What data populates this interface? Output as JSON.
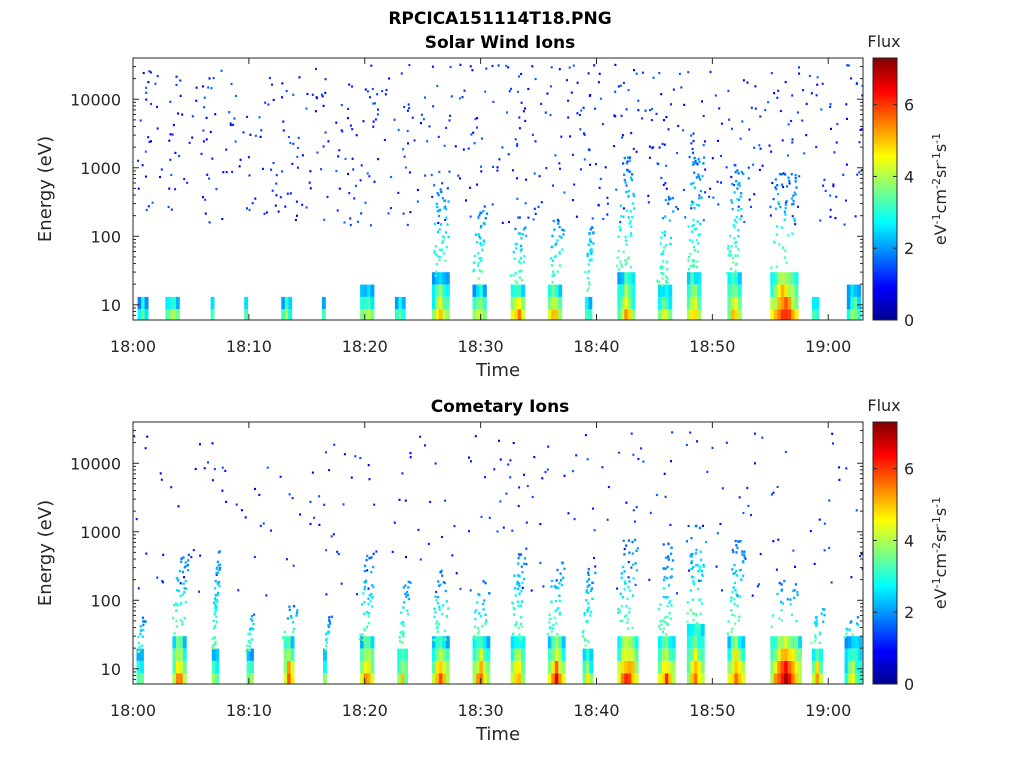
{
  "figure_title": "RPCICA151114T18.PNG",
  "chart_data": [
    {
      "type": "heatmap",
      "title": "Solar Wind Ions",
      "xlabel": "Time",
      "ylabel": "Energy (eV)",
      "y_scale": "log",
      "ylim": [
        6,
        40000
      ],
      "xlim_minutes": [
        0,
        63
      ],
      "x_ticks": [
        {
          "v": 0,
          "label": "18:00"
        },
        {
          "v": 10,
          "label": "18:10"
        },
        {
          "v": 20,
          "label": "18:20"
        },
        {
          "v": 30,
          "label": "18:30"
        },
        {
          "v": 40,
          "label": "18:40"
        },
        {
          "v": 50,
          "label": "18:50"
        },
        {
          "v": 60,
          "label": "19:00"
        }
      ],
      "y_ticks": [
        {
          "v": 10,
          "label": "10"
        },
        {
          "v": 100,
          "label": "100"
        },
        {
          "v": 1000,
          "label": "1000"
        },
        {
          "v": 10000,
          "label": "10000"
        }
      ],
      "colorbar": {
        "title": "Flux",
        "label_parts": [
          {
            "t": "eV",
            "sup": false
          },
          {
            "t": "-1",
            "sup": true
          },
          {
            "t": "cm",
            "sup": false
          },
          {
            "t": "-2",
            "sup": true
          },
          {
            "t": "sr",
            "sup": false
          },
          {
            "t": "-1",
            "sup": true
          },
          {
            "t": "s",
            "sup": false
          },
          {
            "t": "-1",
            "sup": true
          }
        ],
        "range": [
          0,
          7.3
        ],
        "ticks": [
          {
            "v": 0,
            "label": "0"
          },
          {
            "v": 2,
            "label": "2"
          },
          {
            "v": 4,
            "label": "4"
          },
          {
            "v": 6,
            "label": "6"
          }
        ],
        "colormap": "jet"
      },
      "background_cells": {
        "count": 620,
        "emin": 150,
        "emax": 33000,
        "fmin": 0.7,
        "fmax": 1.7
      },
      "bursts": [
        {
          "t": 0.4,
          "w": 1.0,
          "h": 16,
          "f": 3.6,
          "tail": 0
        },
        {
          "t": 2.8,
          "w": 1.2,
          "h": 16,
          "f": 4.3,
          "tail": 0
        },
        {
          "t": 6.7,
          "w": 0.3,
          "h": 16,
          "f": 3.4,
          "tail": 0
        },
        {
          "t": 9.6,
          "w": 0.3,
          "h": 16,
          "f": 3.3,
          "tail": 0
        },
        {
          "t": 12.8,
          "w": 0.9,
          "h": 16,
          "f": 4.0,
          "tail": 0
        },
        {
          "t": 16.3,
          "w": 0.3,
          "h": 16,
          "f": 3.2,
          "tail": 0
        },
        {
          "t": 19.6,
          "w": 1.1,
          "h": 18,
          "f": 4.6,
          "tail": 0
        },
        {
          "t": 22.6,
          "w": 0.8,
          "h": 16,
          "f": 3.7,
          "tail": 0
        },
        {
          "t": 25.8,
          "w": 1.6,
          "h": 26,
          "f": 5.0,
          "tail": 600
        },
        {
          "t": 29.3,
          "w": 1.1,
          "h": 20,
          "f": 4.7,
          "tail": 300
        },
        {
          "t": 32.6,
          "w": 1.3,
          "h": 20,
          "f": 5.7,
          "tail": 200
        },
        {
          "t": 35.8,
          "w": 1.3,
          "h": 20,
          "f": 5.6,
          "tail": 180
        },
        {
          "t": 39.0,
          "w": 0.6,
          "h": 16,
          "f": 3.8,
          "tail": 200
        },
        {
          "t": 41.8,
          "w": 1.6,
          "h": 28,
          "f": 5.3,
          "tail": 1500
        },
        {
          "t": 45.3,
          "w": 1.2,
          "h": 20,
          "f": 4.6,
          "tail": 400
        },
        {
          "t": 47.8,
          "w": 1.3,
          "h": 30,
          "f": 5.2,
          "tail": 1800
        },
        {
          "t": 51.3,
          "w": 1.2,
          "h": 28,
          "f": 5.4,
          "tail": 1200
        },
        {
          "t": 55.0,
          "w": 2.4,
          "h": 34,
          "f": 6.6,
          "tail": 900
        },
        {
          "t": 58.6,
          "w": 0.6,
          "h": 16,
          "f": 3.9,
          "tail": 0
        },
        {
          "t": 61.6,
          "w": 1.2,
          "h": 20,
          "f": 4.0,
          "tail": 0
        }
      ]
    },
    {
      "type": "heatmap",
      "title": "Cometary Ions",
      "xlabel": "Time",
      "ylabel": "Energy (eV)",
      "y_scale": "log",
      "ylim": [
        6,
        40000
      ],
      "xlim_minutes": [
        0,
        63
      ],
      "x_ticks": [
        {
          "v": 0,
          "label": "18:00"
        },
        {
          "v": 10,
          "label": "18:10"
        },
        {
          "v": 20,
          "label": "18:20"
        },
        {
          "v": 30,
          "label": "18:30"
        },
        {
          "v": 40,
          "label": "18:40"
        },
        {
          "v": 50,
          "label": "18:50"
        },
        {
          "v": 60,
          "label": "19:00"
        }
      ],
      "y_ticks": [
        {
          "v": 10,
          "label": "10"
        },
        {
          "v": 100,
          "label": "100"
        },
        {
          "v": 1000,
          "label": "1000"
        },
        {
          "v": 10000,
          "label": "10000"
        }
      ],
      "colorbar": {
        "title": "Flux",
        "label_parts": [
          {
            "t": "eV",
            "sup": false
          },
          {
            "t": "-1",
            "sup": true
          },
          {
            "t": "cm",
            "sup": false
          },
          {
            "t": "-2",
            "sup": true
          },
          {
            "t": "sr",
            "sup": false
          },
          {
            "t": "-1",
            "sup": true
          },
          {
            "t": "s",
            "sup": false
          },
          {
            "t": "-1",
            "sup": true
          }
        ],
        "range": [
          0,
          7.3
        ],
        "ticks": [
          {
            "v": 0,
            "label": "0"
          },
          {
            "v": 2,
            "label": "2"
          },
          {
            "v": 4,
            "label": "4"
          },
          {
            "v": 6,
            "label": "6"
          }
        ],
        "colormap": "jet"
      },
      "background_cells": {
        "count": 240,
        "emin": 120,
        "emax": 30000,
        "fmin": 0.7,
        "fmax": 1.6
      },
      "bursts": [
        {
          "t": 0.3,
          "w": 0.6,
          "h": 18,
          "f": 4.2,
          "tail": 60
        },
        {
          "t": 3.4,
          "w": 1.3,
          "h": 32,
          "f": 5.6,
          "tail": 500
        },
        {
          "t": 6.8,
          "w": 0.5,
          "h": 20,
          "f": 4.2,
          "tail": 600
        },
        {
          "t": 9.8,
          "w": 0.5,
          "h": 18,
          "f": 4.2,
          "tail": 80
        },
        {
          "t": 13.0,
          "w": 1.0,
          "h": 26,
          "f": 6.0,
          "tail": 90
        },
        {
          "t": 16.4,
          "w": 0.4,
          "h": 18,
          "f": 3.8,
          "tail": 60
        },
        {
          "t": 19.6,
          "w": 1.2,
          "h": 26,
          "f": 6.0,
          "tail": 500
        },
        {
          "t": 22.8,
          "w": 1.0,
          "h": 24,
          "f": 5.0,
          "tail": 200
        },
        {
          "t": 25.8,
          "w": 1.6,
          "h": 26,
          "f": 6.1,
          "tail": 300
        },
        {
          "t": 29.3,
          "w": 1.4,
          "h": 28,
          "f": 5.8,
          "tail": 200
        },
        {
          "t": 32.6,
          "w": 1.2,
          "h": 26,
          "f": 5.6,
          "tail": 700
        },
        {
          "t": 35.8,
          "w": 1.4,
          "h": 26,
          "f": 6.2,
          "tail": 400
        },
        {
          "t": 38.8,
          "w": 0.8,
          "h": 22,
          "f": 4.5,
          "tail": 300
        },
        {
          "t": 41.8,
          "w": 1.8,
          "h": 34,
          "f": 6.5,
          "tail": 800
        },
        {
          "t": 45.3,
          "w": 1.4,
          "h": 28,
          "f": 5.8,
          "tail": 700
        },
        {
          "t": 47.8,
          "w": 1.6,
          "h": 40,
          "f": 5.6,
          "tail": 1500
        },
        {
          "t": 51.3,
          "w": 1.4,
          "h": 30,
          "f": 5.9,
          "tail": 800
        },
        {
          "t": 55.0,
          "w": 2.8,
          "h": 36,
          "f": 6.8,
          "tail": 200
        },
        {
          "t": 58.6,
          "w": 1.0,
          "h": 22,
          "f": 5.4,
          "tail": 100
        },
        {
          "t": 61.4,
          "w": 1.4,
          "h": 28,
          "f": 4.4,
          "tail": 60
        }
      ]
    }
  ]
}
